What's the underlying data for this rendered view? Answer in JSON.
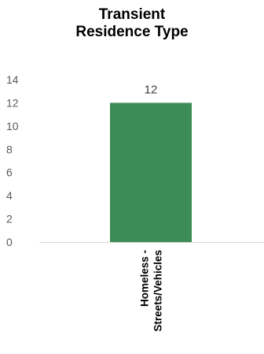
{
  "chart_data": {
    "type": "bar",
    "title_lines": [
      "Transient",
      "Residence Type"
    ],
    "categories": [
      "Homeless -\nStreets/Vehicles"
    ],
    "category_lines": [
      [
        "Homeless -",
        "Streets/Vehicles"
      ]
    ],
    "values": [
      12
    ],
    "data_labels": [
      "12"
    ],
    "yticks": [
      0,
      2,
      4,
      6,
      8,
      10,
      12,
      14
    ],
    "ylim": [
      0,
      14
    ],
    "xlabel": "",
    "ylabel": "",
    "grid": false,
    "legend": "none",
    "colors": {
      "bar": "#3d8b57",
      "axis": "#d9d9d9",
      "tick_text": "#595959",
      "label_text": "#404040",
      "category_text": "#000000"
    }
  }
}
